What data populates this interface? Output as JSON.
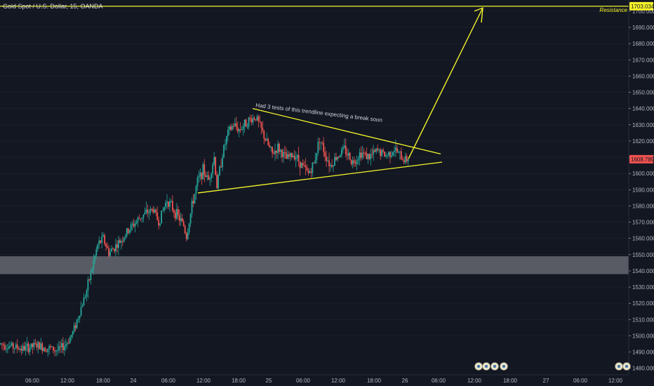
{
  "header": {
    "symbol_title": "Gold Spot / U.S. Dollar, 15, OANDA"
  },
  "colors": {
    "background": "#131722",
    "up": "#26a69a",
    "down": "#ef5350",
    "drawing": "#f5f52a",
    "zone": "#6a6d75",
    "axis_text": "#b2b5be",
    "grid": "#1f2330"
  },
  "chart_data": {
    "type": "candlestick",
    "instrument": "Gold Spot / U.S. Dollar",
    "interval": "15",
    "source": "OANDA",
    "ylim": [
      1476,
      1706
    ],
    "y_ticks": [
      1480,
      1490,
      1500,
      1510,
      1520,
      1530,
      1540,
      1550,
      1560,
      1570,
      1580,
      1590,
      1600,
      1610,
      1620,
      1630,
      1640,
      1650,
      1660,
      1670,
      1680,
      1690,
      1700
    ],
    "y_tick_labels": [
      "1480.000",
      "1490.000",
      "1500.000",
      "1510.000",
      "1520.000",
      "1530.000",
      "1540.000",
      "1550.000",
      "1560.000",
      "1570.000",
      "1580.000",
      "1590.000",
      "1600.000",
      "1610.000",
      "1620.000",
      "1630.000",
      "1640.000",
      "1650.000",
      "1660.000",
      "1670.000",
      "1680.000",
      "1690.000",
      "1700.000"
    ],
    "x_tick_labels": [
      "06:00",
      "12:00",
      "18:00",
      "24",
      "06:00",
      "12:00",
      "18:00",
      "25",
      "06:00",
      "12:00",
      "18:00",
      "26",
      "06:00",
      "12:00",
      "18:00",
      "27",
      "06:00",
      "12:00"
    ],
    "price_path": [
      [
        0,
        1495
      ],
      [
        8,
        1492
      ],
      [
        13,
        1494
      ],
      [
        21,
        1491
      ],
      [
        24,
        1496
      ],
      [
        26,
        1502
      ],
      [
        28,
        1512
      ],
      [
        31,
        1528
      ],
      [
        33,
        1542
      ],
      [
        35,
        1556
      ],
      [
        37,
        1560
      ],
      [
        39,
        1551
      ],
      [
        43,
        1558
      ],
      [
        47,
        1567
      ],
      [
        51,
        1574
      ],
      [
        55,
        1578
      ],
      [
        57,
        1570
      ],
      [
        60,
        1584
      ],
      [
        63,
        1576
      ],
      [
        66,
        1568
      ],
      [
        67,
        1561
      ],
      [
        69,
        1580
      ],
      [
        71,
        1595
      ],
      [
        73,
        1602
      ],
      [
        75,
        1596
      ],
      [
        77,
        1610
      ],
      [
        78,
        1592
      ],
      [
        80,
        1612
      ],
      [
        82,
        1625
      ],
      [
        84,
        1630
      ],
      [
        86,
        1627
      ],
      [
        89,
        1632
      ],
      [
        92,
        1635
      ],
      [
        94,
        1627
      ],
      [
        96,
        1619
      ],
      [
        98,
        1612
      ],
      [
        100,
        1616
      ],
      [
        103,
        1609
      ],
      [
        106,
        1612
      ],
      [
        109,
        1604
      ],
      [
        111,
        1600
      ],
      [
        113,
        1606
      ],
      [
        115,
        1622
      ],
      [
        117,
        1612
      ],
      [
        119,
        1605
      ],
      [
        121,
        1610
      ],
      [
        124,
        1615
      ],
      [
        127,
        1607
      ],
      [
        130,
        1613
      ],
      [
        133,
        1610
      ],
      [
        136,
        1614
      ],
      [
        139,
        1611
      ],
      [
        142,
        1615
      ],
      [
        145,
        1609
      ],
      [
        147,
        1608.7
      ]
    ],
    "current_price": 1608.789,
    "current_price_label": "1608.789",
    "resistance": {
      "price": 1703.034,
      "label": "1703.034",
      "name": "Resistance"
    },
    "zone": {
      "from": 1538,
      "to": 1549
    },
    "annotation": "Had 3 tests of this trendline expecting a break soon"
  },
  "bottom_icons": [
    "emoji-flag-icon",
    "emoji-flag-icon",
    "emoji-flag-icon",
    "emoji-flag-icon",
    "emoji-flag-icon",
    "emoji-flag-icon"
  ]
}
